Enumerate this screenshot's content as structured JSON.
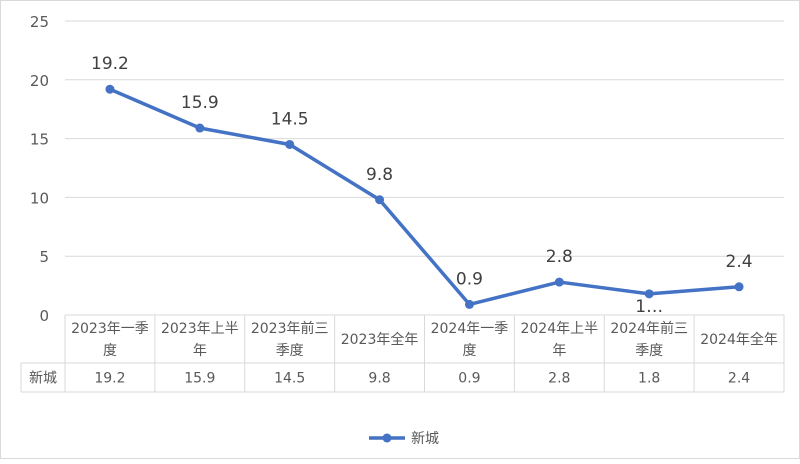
{
  "chart_data": {
    "type": "line",
    "categories": [
      [
        "2023年一季",
        "度"
      ],
      [
        "2023年上半",
        "年"
      ],
      [
        "2023年前三",
        "季度"
      ],
      [
        "2023年全年"
      ],
      [
        "2024年一季",
        "度"
      ],
      [
        "2024年上半",
        "年"
      ],
      [
        "2024年前三",
        "季度"
      ],
      [
        "2024年全年"
      ]
    ],
    "series": [
      {
        "name": "新城",
        "values": [
          19.2,
          15.9,
          14.5,
          9.8,
          0.9,
          2.8,
          1.8,
          2.4
        ],
        "color": "#4472c4"
      }
    ],
    "data_labels": [
      "19.2",
      "15.9",
      "14.5",
      "9.8",
      "0.9",
      "2.8",
      "1…",
      "2.4"
    ],
    "ylim": [
      0,
      25
    ],
    "yticks": [
      "0",
      "5",
      "10",
      "15",
      "20",
      "25"
    ],
    "grid": true,
    "legend_position": "bottom",
    "data_table": {
      "row_header": "新城",
      "cells": [
        "19.2",
        "15.9",
        "14.5",
        "9.8",
        "0.9",
        "2.8",
        "1.8",
        "2.4"
      ]
    }
  }
}
